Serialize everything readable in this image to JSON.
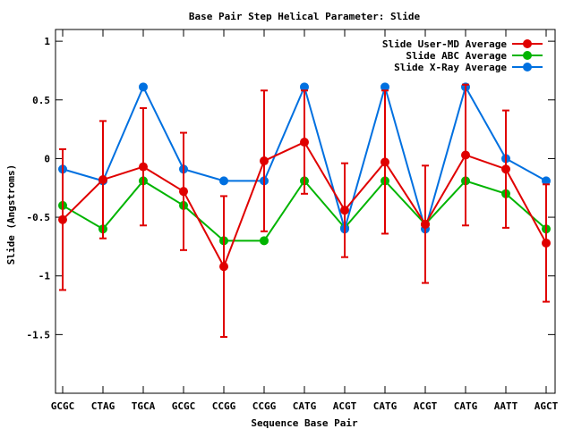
{
  "chart_data": {
    "type": "line",
    "title": "Base Pair Step Helical Parameter: Slide",
    "xlabel": "Sequence Base Pair",
    "ylabel": "Slide (Angstroms)",
    "ylim": [
      -2,
      1.1
    ],
    "yticks": [
      1,
      0.5,
      0,
      -0.5,
      -1,
      -1.5
    ],
    "ytick_labels": [
      "1",
      "0.5",
      "0",
      "-0.5",
      "-1",
      "-1.5"
    ],
    "categories": [
      "GCGC",
      "CTAG",
      "TGCA",
      "GCGC",
      "CCGG",
      "CCGG",
      "CATG",
      "ACGT",
      "CATG",
      "ACGT",
      "CATG",
      "AATT",
      "AGCT"
    ],
    "legend_position": "top-right",
    "grid": false,
    "series": [
      {
        "name": "Slide User-MD Average",
        "color": "#e00000",
        "values": [
          -0.52,
          -0.18,
          -0.07,
          -0.28,
          -0.92,
          -0.02,
          0.14,
          -0.44,
          -0.03,
          -0.56,
          0.03,
          -0.09,
          -0.72
        ],
        "error": [
          0.6,
          0.5,
          0.5,
          0.5,
          0.6,
          0.6,
          0.44,
          0.4,
          0.61,
          0.5,
          0.6,
          0.5,
          0.5
        ]
      },
      {
        "name": "Slide ABC Average",
        "color": "#00b400",
        "values": [
          -0.4,
          -0.6,
          -0.19,
          -0.4,
          -0.7,
          -0.7,
          -0.19,
          -0.59,
          -0.19,
          -0.56,
          -0.19,
          -0.3,
          -0.6
        ]
      },
      {
        "name": "Slide X-Ray Average",
        "color": "#0070e0",
        "values": [
          -0.09,
          -0.19,
          0.61,
          -0.09,
          -0.19,
          -0.19,
          0.61,
          -0.6,
          0.61,
          -0.6,
          0.61,
          0.0,
          -0.19
        ]
      }
    ]
  }
}
